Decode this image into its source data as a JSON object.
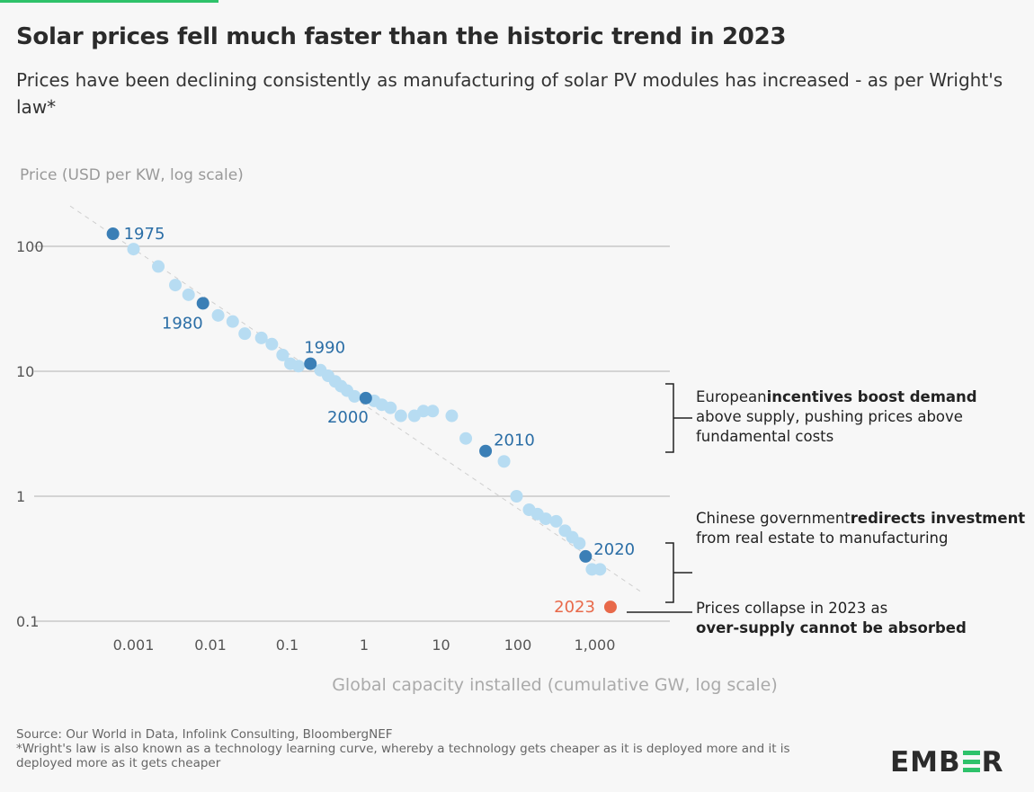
{
  "title": "Solar prices fell much faster than the historic trend in 2023",
  "subtitle": "Prices have been declining consistently as manufacturing of solar PV modules has increased - as per Wright's law*",
  "annotations": {
    "a1": {
      "pre": "European ",
      "b1": "incentives boost demand",
      "post": " above supply, pushing prices above fundamental costs"
    },
    "a2": {
      "pre": "Chinese government ",
      "b1": "redirects investment",
      "post": " from real estate to manufacturing"
    },
    "a3": {
      "pre": "Prices collapse in 2023 as ",
      "b1": "over-supply cannot be absorbed",
      "post": ""
    }
  },
  "source": "Source: Our World in Data, Infolink Consulting, BloombergNEF",
  "footnote": "*Wright's law is also known as a technology learning curve, whereby a technology gets cheaper as it is deployed more and it is deployed more as it gets cheaper",
  "logo_text": "EMBER",
  "colors": {
    "highlight": "#3b7fb6",
    "point": "#b7dcf2",
    "label": "#2b6ea6",
    "latest": "#e8694a",
    "trend": "#cfcfcf",
    "grid": "#c8c8c8"
  },
  "chart_data": {
    "type": "scatter",
    "title": "Solar prices fell much faster than the historic trend in 2023",
    "xlabel": "Global capacity installed (cumulative GW, log scale)",
    "ylabel": "Price (USD per KW, log scale)",
    "xscale": "log",
    "yscale": "log",
    "xlim": [
      0.00013,
      8000
    ],
    "ylim": [
      0.09,
      200
    ],
    "xticks": [
      0.001,
      0.01,
      0.1,
      1,
      10,
      100,
      1000
    ],
    "xtick_labels": [
      "0.001",
      "0.01",
      "0.1",
      "1",
      "10",
      "100",
      "1,000"
    ],
    "yticks": [
      100,
      10,
      1,
      0.1
    ],
    "ytick_labels": [
      "100",
      "10",
      "1",
      "0.1"
    ],
    "grid": "horizontal",
    "trendline": {
      "x": [
        0.00015,
        4100
      ],
      "y": [
        210,
        0.17
      ]
    },
    "points": [
      {
        "x": 0.00054,
        "y": 126,
        "label": "1975"
      },
      {
        "x": 0.001,
        "y": 95
      },
      {
        "x": 0.0021,
        "y": 69
      },
      {
        "x": 0.0035,
        "y": 49
      },
      {
        "x": 0.0052,
        "y": 41
      },
      {
        "x": 0.008,
        "y": 35,
        "label": "1980"
      },
      {
        "x": 0.0126,
        "y": 28
      },
      {
        "x": 0.0195,
        "y": 25
      },
      {
        "x": 0.028,
        "y": 20
      },
      {
        "x": 0.046,
        "y": 18.5
      },
      {
        "x": 0.063,
        "y": 16.5
      },
      {
        "x": 0.087,
        "y": 13.5
      },
      {
        "x": 0.11,
        "y": 11.5
      },
      {
        "x": 0.14,
        "y": 11
      },
      {
        "x": 0.2,
        "y": 11.5,
        "label": "1990"
      },
      {
        "x": 0.27,
        "y": 10.2
      },
      {
        "x": 0.34,
        "y": 9.2
      },
      {
        "x": 0.42,
        "y": 8.3
      },
      {
        "x": 0.5,
        "y": 7.6
      },
      {
        "x": 0.6,
        "y": 7
      },
      {
        "x": 0.75,
        "y": 6.3
      },
      {
        "x": 1.05,
        "y": 6.1,
        "label": "2000"
      },
      {
        "x": 1.35,
        "y": 5.8
      },
      {
        "x": 1.7,
        "y": 5.4
      },
      {
        "x": 2.2,
        "y": 5.1
      },
      {
        "x": 3,
        "y": 4.4
      },
      {
        "x": 4.5,
        "y": 4.4
      },
      {
        "x": 5.9,
        "y": 4.8
      },
      {
        "x": 7.8,
        "y": 4.8
      },
      {
        "x": 13.8,
        "y": 4.4
      },
      {
        "x": 21,
        "y": 2.9
      },
      {
        "x": 38,
        "y": 2.3,
        "label": "2010"
      },
      {
        "x": 66,
        "y": 1.9
      },
      {
        "x": 96,
        "y": 1.0
      },
      {
        "x": 140,
        "y": 0.78
      },
      {
        "x": 180,
        "y": 0.72
      },
      {
        "x": 230,
        "y": 0.66
      },
      {
        "x": 315,
        "y": 0.63
      },
      {
        "x": 410,
        "y": 0.53
      },
      {
        "x": 510,
        "y": 0.47
      },
      {
        "x": 630,
        "y": 0.42
      },
      {
        "x": 760,
        "y": 0.33,
        "label": "2020"
      },
      {
        "x": 920,
        "y": 0.26
      },
      {
        "x": 1170,
        "y": 0.26
      },
      {
        "x": 1600,
        "y": 0.13,
        "label": "2023",
        "latest": true
      }
    ]
  }
}
